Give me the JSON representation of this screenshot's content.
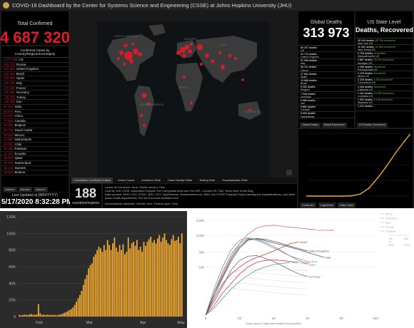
{
  "dashboard": {
    "title": "COVID-19 Dashboard by the Center for Systems Science and Engineering (CSSE) at Johns Hopkins University (JHU)",
    "total_confirmed_label": "Total Confirmed",
    "total_confirmed": "4 687 320",
    "list_header": "Confirmed Cases by Country/Region/Sovereignty",
    "countries": [
      {
        "n": "1 477 459",
        "name": "US"
      },
      {
        "n": "281 752",
        "name": "Russia"
      },
      {
        "n": "244 995",
        "name": "United Kingdom"
      },
      {
        "n": "241 080",
        "name": "Brazil"
      },
      {
        "n": "230 698",
        "name": "Spain"
      },
      {
        "n": "225 435",
        "name": "Italy"
      },
      {
        "n": "179 630",
        "name": "France"
      },
      {
        "n": "176 551",
        "name": "Germany"
      },
      {
        "n": "149 435",
        "name": "Turkey"
      },
      {
        "n": "120 198",
        "name": "Iran"
      },
      {
        "n": "91 314",
        "name": "India"
      },
      {
        "n": "88 541",
        "name": "Peru"
      },
      {
        "n": "84 054",
        "name": "China"
      },
      {
        "n": "77 002",
        "name": "Canada"
      },
      {
        "n": "55 280",
        "name": "Belgium"
      },
      {
        "n": "54 752",
        "name": "Saudi Arabia"
      },
      {
        "n": "49 219",
        "name": "Mexico"
      },
      {
        "n": "43 995",
        "name": "Netherlands"
      },
      {
        "n": "43 781",
        "name": "Chile"
      },
      {
        "n": "38 799",
        "name": "Pakistan"
      },
      {
        "n": "31 467",
        "name": "Ecuador"
      },
      {
        "n": "30 972",
        "name": "Qatar"
      },
      {
        "n": "30 305",
        "name": "Switzerland"
      },
      {
        "n": "30 143",
        "name": "Sweden"
      },
      {
        "n": "29 650",
        "name": "Belarus"
      }
    ],
    "list_tabs": [
      "Admin0",
      "Admin1",
      "Admin2"
    ],
    "last_updated_label": "Last Updated at (M/D/YYYY)",
    "last_updated": "5/17/2020 8:32:28 PM",
    "map_tabs": [
      "Cumulative Confirmed Cases",
      "Active Cases",
      "Incidence Rate",
      "Case-Fatality Ratio",
      "Testing Rate",
      "Hospitalization Rate"
    ],
    "country_count": "188",
    "country_count_label": "countries/regions",
    "info_lines": [
      "Lancet Inf Dis Article: Here. Mobile Version: Here.",
      "Lead by JHU CSSE. Automation Support: Esri Living Atlas team and JHU APL. Contact US. FAQ. Read more in this blog.",
      "Data sources: WHO, CDC, ECDC, NHC, DXY, 1point3acres, Worldometers.info, BNO, the COVID Tracking Project (testing and hospitalizations), and state and local",
      "public health departments. Full list of sources available here.",
      "Downloadable database: GitHub: Here. Feature layer: Here."
    ],
    "global_deaths_label": "Global Deaths",
    "global_deaths": "313 973",
    "deaths_rows": [
      {
        "d": "89 207 deaths",
        "c": "US"
      },
      {
        "d": "34 716 deaths",
        "c": "United Kingdom"
      },
      {
        "d": "31 908 deaths",
        "c": "Italy"
      },
      {
        "d": "28 111 deaths",
        "c": "France"
      },
      {
        "d": "27 563 deaths",
        "c": "Spain"
      },
      {
        "d": "15 668 deaths",
        "c": "Brazil"
      },
      {
        "d": "9 052 deaths",
        "c": "Belgium"
      },
      {
        "d": "7 938 deaths",
        "c": "Germany"
      },
      {
        "d": "6 988 deaths",
        "c": "Iran"
      },
      {
        "d": "5 882 deaths",
        "c": "Canada"
      },
      {
        "d": "5 694 deaths",
        "c": "Netherlands"
      }
    ],
    "deaths_tabs": [
      "Global Deaths",
      "Global Recovered"
    ],
    "us_state_label": "US State Level",
    "us_state_value": "Deaths, Recovered",
    "recovered_rows": [
      {
        "d": "28 049 deaths,",
        "g": "65 796 recovered",
        "c": "New York US"
      },
      {
        "d": "10 362 deaths,",
        "g": "32 898 recovered",
        "c": "New Jersey US"
      },
      {
        "d": "5 705 deaths,",
        "g": "recovered",
        "c": "Massachusetts US"
      },
      {
        "d": "4 887 deaths,",
        "g": "28 234 recovered",
        "c": "Michigan US"
      },
      {
        "d": "4 495 deaths,",
        "g": "recovered",
        "c": "Pennsylvania US"
      },
      {
        "d": "4 129 deaths,",
        "g": "recovered",
        "c": "Illinois US"
      },
      {
        "d": "3 339 deaths,",
        "g": "6 264 recovered",
        "c": "Connecticut US"
      },
      {
        "d": "3 008 deaths,",
        "g": "recovered",
        "c": "California US"
      },
      {
        "d": "2 491 deaths,",
        "g": "24 099 recovered",
        "c": "Louisiana US"
      },
      {
        "d": "1 992 deaths,",
        "g": "5 108 recovered",
        "c": "Maryland US"
      },
      {
        "d": "1 914 deaths,",
        "g": "",
        "c": ""
      }
    ],
    "rec_tabs": [
      "US Deaths, Recovered"
    ],
    "curve_tabs": [
      "Confirmed",
      "Logarithmic",
      "Daily Cases"
    ]
  },
  "bar_chart": {
    "y_ticks": [
      "120K",
      "100K",
      "80K",
      "60K",
      "40K",
      "20K",
      "0"
    ],
    "x_ticks": [
      "Feb",
      "Mar",
      "Apr",
      "May"
    ],
    "bar_color": "#f0a830"
  },
  "line_chart": {
    "y_ticks": [
      "3,000",
      "1,000",
      "300",
      "100"
    ],
    "x_ticks": [
      "0",
      "20",
      "40",
      "60",
      "80",
      "100"
    ],
    "x_label": "Days since 3 daily new deaths first reported",
    "series_labels": [
      "United States",
      "Brazil",
      "United Kingdom",
      "Spain",
      "France",
      "Italy",
      "Canada",
      "Germany",
      "Peru"
    ],
    "legend_lines": [
      "Africa",
      "Americas",
      "Asia",
      "Europe",
      "Oceania"
    ],
    "mini_axis": [
      "Jan",
      "Mar",
      "20",
      "2020",
      "2020"
    ]
  },
  "chart_data": [
    {
      "type": "bar",
      "title": "",
      "ylim": [
        0,
        120000
      ],
      "x_ticks": [
        "Feb",
        "Mar",
        "Apr",
        "May"
      ],
      "values": [
        2000,
        1500,
        1800,
        2500,
        2100,
        1900,
        2800,
        3000,
        2200,
        2100,
        2600,
        15000,
        4000,
        2000,
        2400,
        1800,
        2300,
        2100,
        1900,
        1800,
        2200,
        1500,
        1900,
        2300,
        2700,
        3500,
        4500,
        5500,
        6500,
        8000,
        9000,
        11000,
        14000,
        18000,
        22000,
        26000,
        31000,
        38000,
        45000,
        50000,
        58000,
        62000,
        64000,
        72000,
        75000,
        80000,
        84000,
        82000,
        78000,
        86000,
        80000,
        92000,
        86000,
        80000,
        88000,
        95000,
        83000,
        78000,
        86000,
        80000,
        87000,
        75000,
        78000,
        95000,
        82000,
        88000,
        90000,
        85000,
        92000,
        80000,
        84000,
        78000,
        90000,
        85000,
        90000,
        93000,
        96000,
        89000,
        92000,
        88000,
        94000,
        98000,
        90000,
        95000,
        100000,
        92000,
        88000,
        86000,
        93000,
        98000,
        91000,
        92000,
        96000,
        88000,
        100000
      ]
    },
    {
      "type": "line",
      "title": "",
      "xlabel": "Days since 3 daily new deaths first reported",
      "ylabel": "",
      "xlim": [
        0,
        100
      ],
      "scale": "log",
      "series": [
        {
          "name": "United States",
          "x": [
            0,
            5,
            10,
            15,
            20,
            25,
            30,
            35,
            40,
            45,
            50,
            55,
            60,
            65
          ],
          "y": [
            3,
            15,
            60,
            200,
            550,
            1100,
            1700,
            2000,
            2100,
            1950,
            1800,
            1700,
            1600,
            1500
          ]
        },
        {
          "name": "Brazil",
          "x": [
            0,
            5,
            10,
            15,
            20,
            25,
            30,
            35,
            40,
            45,
            50,
            55
          ],
          "y": [
            3,
            10,
            30,
            60,
            100,
            150,
            200,
            250,
            320,
            420,
            550,
            620
          ]
        },
        {
          "name": "United Kingdom",
          "x": [
            0,
            5,
            10,
            15,
            20,
            25,
            30,
            35,
            40,
            45,
            50,
            55,
            60
          ],
          "y": [
            3,
            12,
            45,
            150,
            400,
            700,
            800,
            750,
            650,
            550,
            450,
            380,
            320
          ]
        },
        {
          "name": "Spain",
          "x": [
            0,
            5,
            10,
            15,
            20,
            25,
            30,
            35,
            40,
            45,
            50,
            55,
            60
          ],
          "y": [
            3,
            20,
            100,
            350,
            700,
            850,
            750,
            600,
            450,
            320,
            220,
            160,
            120
          ]
        },
        {
          "name": "France",
          "x": [
            0,
            5,
            10,
            15,
            20,
            25,
            30,
            35,
            40,
            45,
            50,
            55,
            60
          ],
          "y": [
            3,
            15,
            70,
            250,
            550,
            800,
            700,
            550,
            400,
            300,
            220,
            180,
            150
          ]
        },
        {
          "name": "Italy",
          "x": [
            0,
            5,
            10,
            15,
            20,
            25,
            30,
            35,
            40,
            45,
            50,
            55,
            60,
            65,
            70
          ],
          "y": [
            3,
            15,
            50,
            180,
            450,
            750,
            780,
            680,
            580,
            500,
            420,
            350,
            290,
            240,
            200
          ]
        },
        {
          "name": "Canada",
          "x": [
            0,
            5,
            10,
            15,
            20,
            25,
            30,
            35,
            40,
            45,
            50,
            55
          ],
          "y": [
            3,
            6,
            15,
            30,
            60,
            100,
            140,
            160,
            170,
            160,
            150,
            140
          ]
        },
        {
          "name": "Germany",
          "x": [
            0,
            5,
            10,
            15,
            20,
            25,
            30,
            35,
            40,
            45,
            50,
            55,
            60
          ],
          "y": [
            3,
            8,
            25,
            80,
            160,
            220,
            230,
            190,
            150,
            110,
            80,
            60,
            50
          ]
        },
        {
          "name": "Peru",
          "x": [
            0,
            5,
            10,
            15,
            20,
            25,
            30,
            35,
            40,
            45,
            50
          ],
          "y": [
            3,
            5,
            10,
            20,
            35,
            55,
            80,
            100,
            120,
            130,
            140
          ]
        }
      ]
    },
    {
      "type": "line",
      "title": "",
      "series": [
        {
          "name": "",
          "x": [
            0,
            10,
            20,
            30,
            40,
            50,
            60,
            70,
            80,
            90,
            100,
            110,
            116
          ],
          "y": [
            0,
            0,
            0,
            0,
            0,
            2,
            15,
            60,
            140,
            230,
            330,
            420,
            470
          ]
        }
      ]
    }
  ]
}
